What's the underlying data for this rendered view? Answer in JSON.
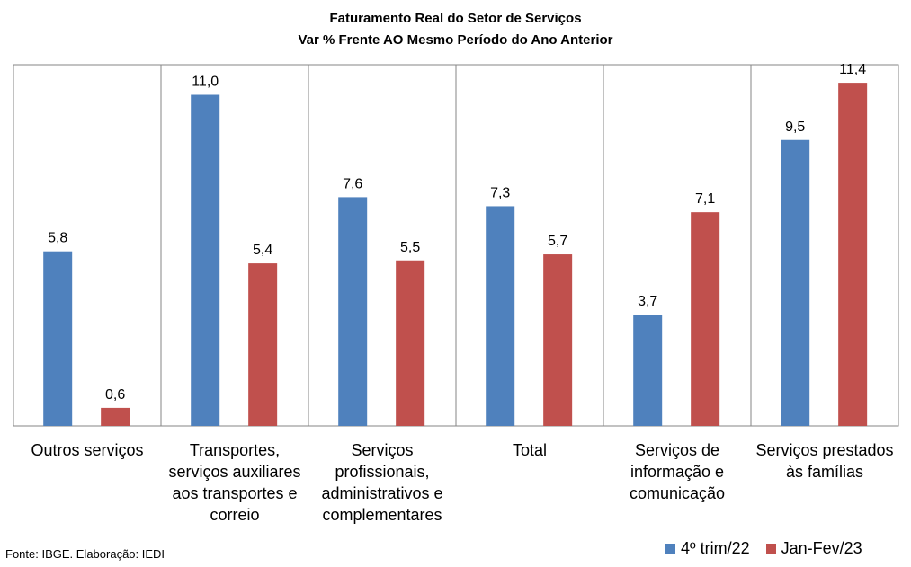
{
  "chart_data": {
    "type": "bar",
    "title": "Faturamento Real do Setor de Serviços",
    "subtitle": "Var % Frente AO Mesmo Período do Ano Anterior",
    "categories": [
      [
        "Outros serviços"
      ],
      [
        "Transportes,",
        "serviços auxiliares",
        "aos transportes e",
        "correio"
      ],
      [
        "Serviços",
        "profissionais,",
        "administrativos e",
        "complementares"
      ],
      [
        "Total"
      ],
      [
        "Serviços de",
        "informação e",
        "comunicação"
      ],
      [
        "Serviços prestados",
        "às famílias"
      ]
    ],
    "series": [
      {
        "name": "4º trim/22",
        "color": "#4F81BD",
        "values": [
          5.8,
          11.0,
          7.6,
          7.3,
          3.7,
          9.5
        ],
        "labels": [
          "5,8",
          "11,0",
          "7,6",
          "7,3",
          "3,7",
          "9,5"
        ]
      },
      {
        "name": "Jan-Fev/23",
        "color": "#C0504D",
        "values": [
          0.6,
          5.4,
          5.5,
          5.7,
          7.1,
          11.4
        ],
        "labels": [
          "0,6",
          "5,4",
          "5,5",
          "5,7",
          "7,1",
          "11,4"
        ]
      }
    ],
    "ylim": [
      0,
      12
    ],
    "grid": false,
    "legend_position": "bottom-right"
  },
  "footer": {
    "source": "Fonte: IBGE. Elaboração: IEDI"
  }
}
